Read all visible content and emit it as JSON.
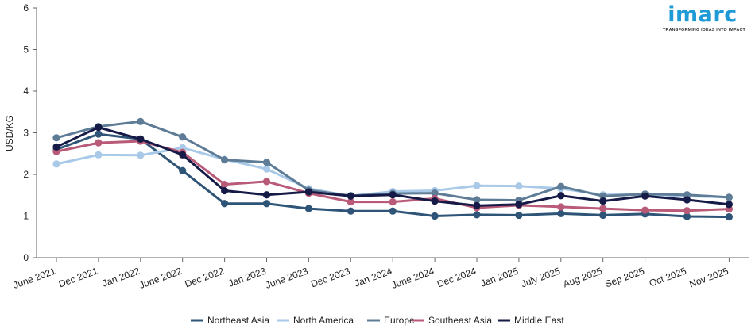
{
  "logo": {
    "name": "imarc",
    "tagline": "TRANSFORMING IDEAS INTO IMPACT"
  },
  "chart_data": {
    "type": "line",
    "title": "",
    "xlabel": "",
    "ylabel": "USD/KG",
    "ylim": [
      0,
      6
    ],
    "yticks": [
      0,
      1,
      2,
      3,
      4,
      5,
      6
    ],
    "grid": false,
    "legend_position": "bottom",
    "categories": [
      "June 2021",
      "Dec 2021",
      "Jan 2022",
      "June 2022",
      "Dec 2022",
      "Jan 2023",
      "June 2023",
      "Dec 2023",
      "Jan 2024",
      "June 2024",
      "Dec 2024",
      "Jan 2025",
      "July 2025",
      "Aug 2025",
      "Sep 2025",
      "Oct 2025",
      "Nov 2025"
    ],
    "series": [
      {
        "name": "Northeast Asia",
        "color": "#2e5477",
        "values": [
          2.6,
          2.97,
          2.85,
          2.09,
          1.3,
          1.3,
          1.18,
          1.12,
          1.12,
          1.0,
          1.03,
          1.02,
          1.06,
          1.02,
          1.05,
          0.99,
          0.98
        ]
      },
      {
        "name": "North America",
        "color": "#a9c9e8",
        "values": [
          2.25,
          2.47,
          2.46,
          2.64,
          2.36,
          2.13,
          1.66,
          1.48,
          1.59,
          1.61,
          1.73,
          1.72,
          1.66,
          1.51,
          1.52,
          1.48,
          1.45
        ]
      },
      {
        "name": "Europe",
        "color": "#5f7c97",
        "values": [
          2.88,
          3.15,
          3.27,
          2.9,
          2.35,
          2.29,
          1.62,
          1.49,
          1.54,
          1.55,
          1.39,
          1.38,
          1.71,
          1.48,
          1.53,
          1.51,
          1.45
        ]
      },
      {
        "name": "Southeast Asia",
        "color": "#b85a78",
        "values": [
          2.55,
          2.76,
          2.8,
          2.53,
          1.76,
          1.83,
          1.55,
          1.34,
          1.34,
          1.42,
          1.2,
          1.26,
          1.22,
          1.18,
          1.14,
          1.13,
          1.17
        ]
      },
      {
        "name": "Middle East",
        "color": "#161a47",
        "values": [
          2.66,
          3.13,
          2.85,
          2.47,
          1.61,
          1.51,
          1.58,
          1.48,
          1.51,
          1.36,
          1.25,
          1.28,
          1.49,
          1.36,
          1.48,
          1.39,
          1.28
        ]
      }
    ]
  }
}
